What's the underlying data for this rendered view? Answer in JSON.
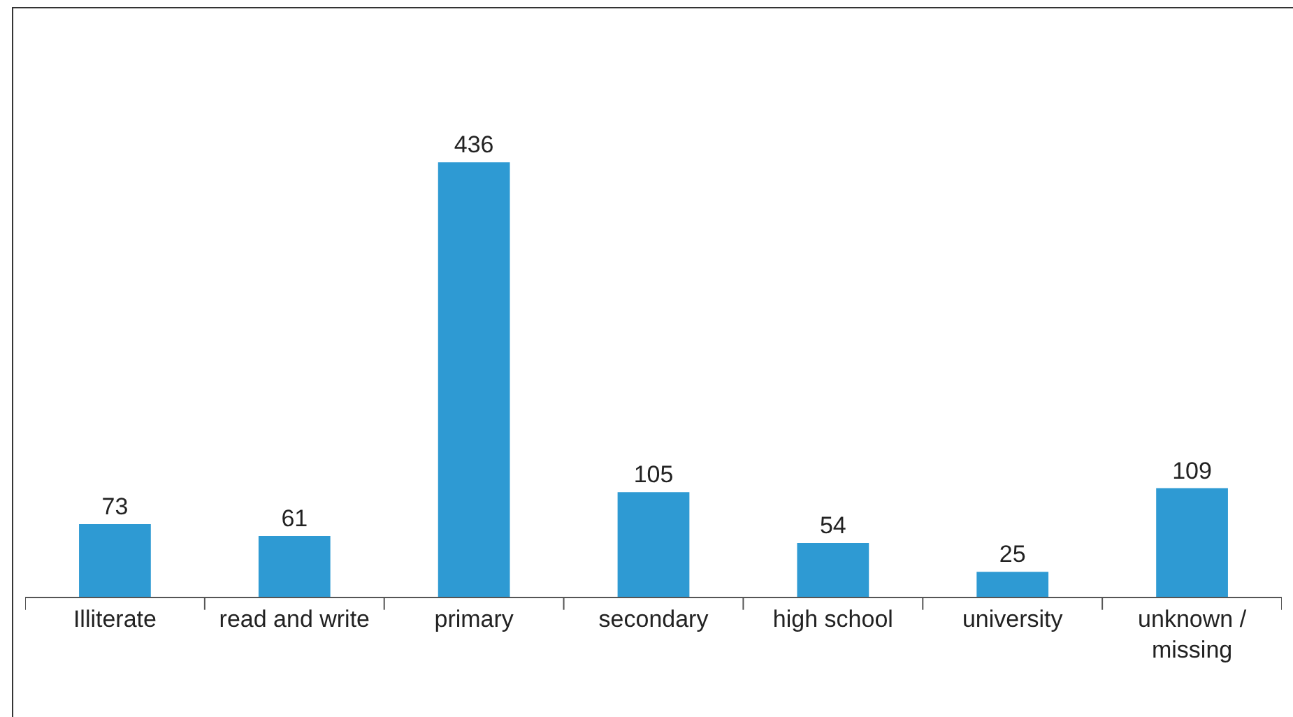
{
  "chart_data": {
    "type": "bar",
    "categories": [
      "Illiterate",
      "read and write",
      "primary",
      "secondary",
      "high school",
      "university",
      "unknown / missing"
    ],
    "values": [
      73,
      61,
      436,
      105,
      54,
      25,
      109
    ],
    "color": "#2e9ad3",
    "data_labels": true,
    "grid": false,
    "legend": false
  }
}
